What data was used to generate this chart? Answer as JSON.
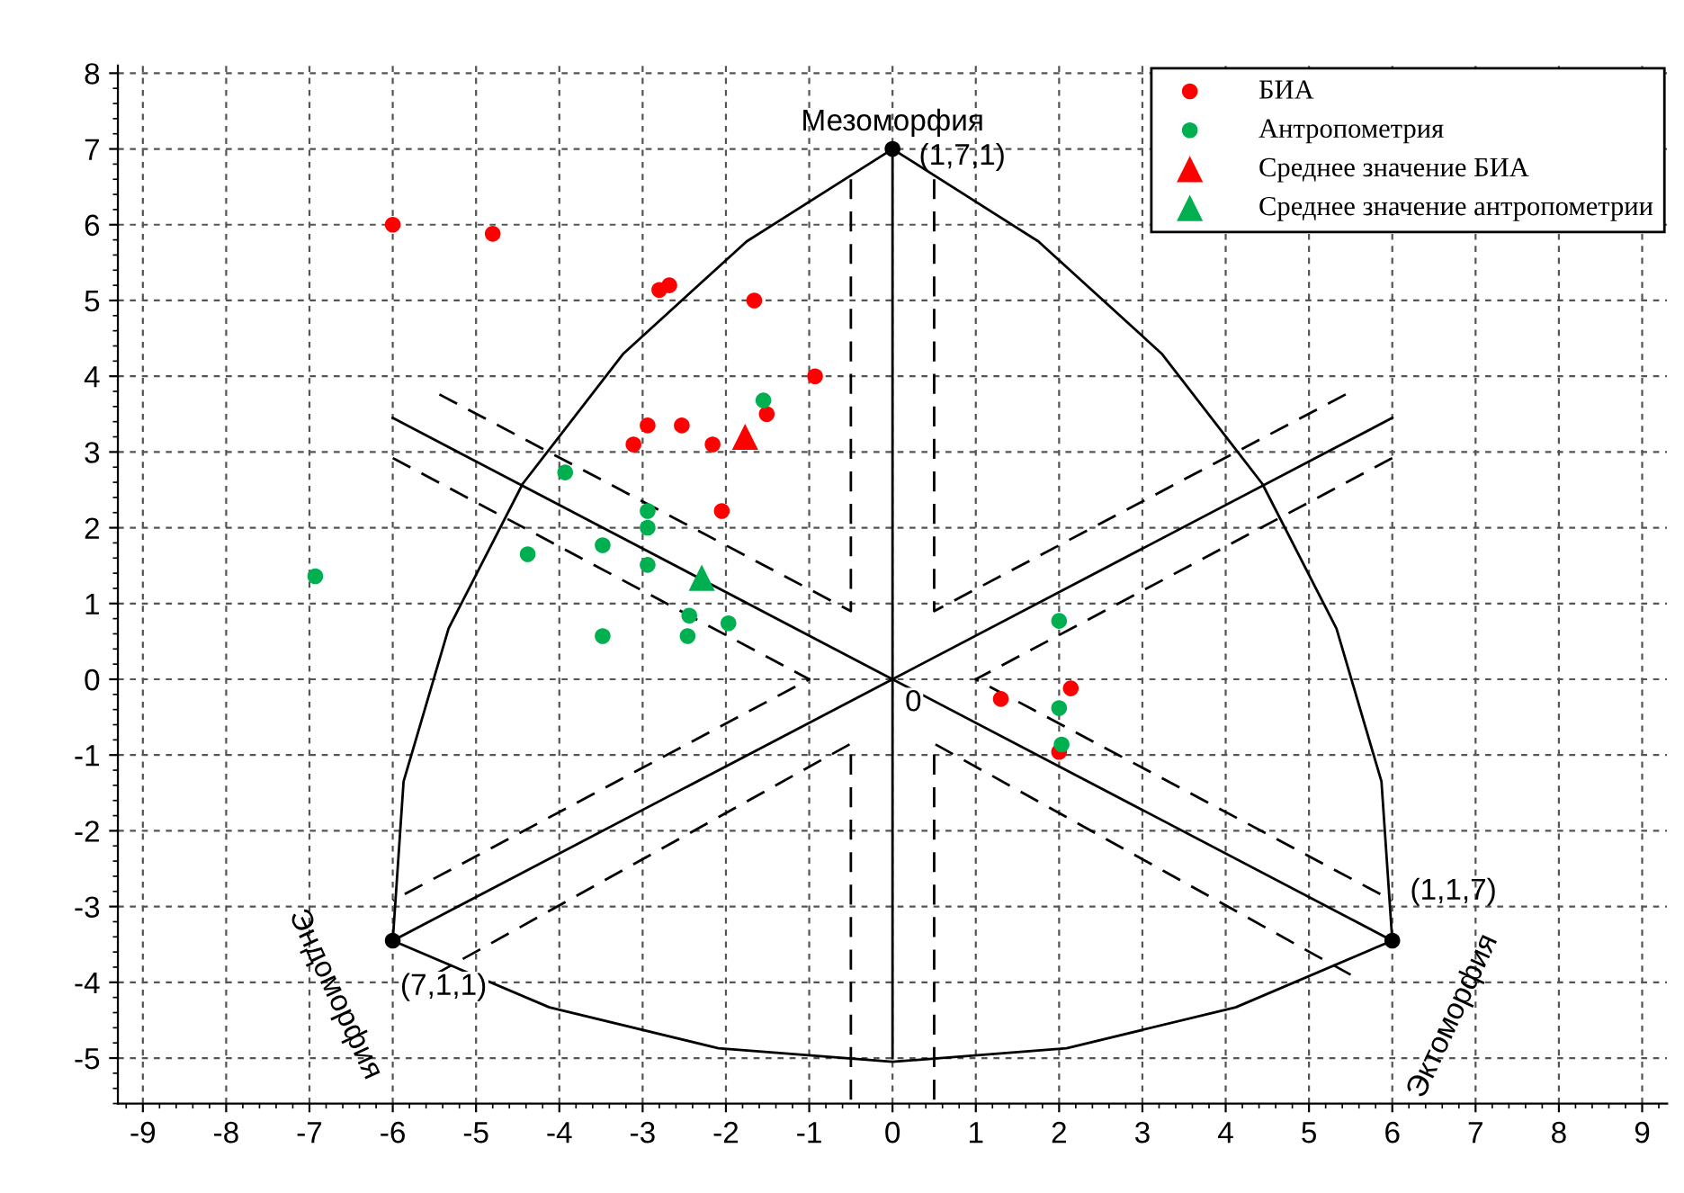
{
  "chart_data": {
    "type": "scatter",
    "xlim": [
      -9.3,
      9.3
    ],
    "ylim": [
      -5.6,
      8.1
    ],
    "xticks": [
      -9,
      -8,
      -7,
      -6,
      -5,
      -4,
      -3,
      -2,
      -1,
      0,
      1,
      2,
      3,
      4,
      5,
      6,
      7,
      8,
      9
    ],
    "yticks": [
      -5,
      -4,
      -3,
      -2,
      -1,
      0,
      1,
      2,
      3,
      4,
      5,
      6,
      7,
      8
    ],
    "grid": true,
    "legend": "top right",
    "series": [
      {
        "type": "line",
        "color": "#000000",
        "line_style": "solid",
        "x": [
          0,
          -1.75,
          -3.23,
          -4.44,
          -5.33,
          -5.87,
          -6
        ],
        "values": [
          7,
          5.78,
          4.3,
          2.58,
          0.67,
          -1.35,
          -3.45
        ]
      },
      {
        "type": "line",
        "color": "#000000",
        "line_style": "solid",
        "x": [
          0,
          1.75,
          3.23,
          4.44,
          5.33,
          5.87,
          6
        ],
        "values": [
          7,
          5.78,
          4.3,
          2.58,
          0.67,
          -1.35,
          -3.45
        ]
      },
      {
        "type": "line",
        "color": "#000000",
        "line_style": "solid",
        "x": [
          -6,
          -4.12,
          -2.09,
          0,
          2.09,
          4.12,
          6
        ],
        "values": [
          -3.45,
          -4.33,
          -4.87,
          -5.05,
          -4.87,
          -4.33,
          -3.45
        ]
      },
      {
        "type": "line",
        "color": "#000000",
        "line_style": "solid",
        "x": [
          -6,
          0,
          6
        ],
        "values": [
          3.45,
          0,
          3.45
        ]
      },
      {
        "type": "line",
        "color": "#000000",
        "line_style": "dashed",
        "x": [
          -5.44,
          -0.5,
          -0.5
        ],
        "values": [
          3.76,
          0.9,
          6.6
        ]
      },
      {
        "type": "line",
        "color": "#000000",
        "line_style": "dashed",
        "x": [
          5.44,
          0.5,
          0.5
        ],
        "values": [
          3.76,
          0.9,
          6.6
        ]
      },
      {
        "type": "line",
        "color": "#000000",
        "line_style": "dashed",
        "x": [
          -6,
          -1,
          -6
        ],
        "values": [
          2.92,
          0,
          -2.92
        ]
      },
      {
        "type": "line",
        "color": "#000000",
        "line_style": "dashed",
        "x": [
          6,
          1,
          6
        ],
        "values": [
          2.92,
          0,
          -2.92
        ]
      },
      {
        "type": "line",
        "color": "#000000",
        "line_style": "dashed",
        "x": [
          -5.5,
          -0.5,
          -0.5
        ],
        "values": [
          -3.9,
          -0.85,
          -5.6
        ]
      },
      {
        "type": "line",
        "color": "#000000",
        "line_style": "dashed",
        "x": [
          5.5,
          0.5,
          0.5
        ],
        "values": [
          -3.9,
          -0.85,
          -5.6
        ]
      },
      {
        "type": "line",
        "color": "#000000",
        "line_style": "solid",
        "x": [
          0,
          0,
          0
        ],
        "values": [
          7,
          0,
          -5
        ]
      },
      {
        "type": "line",
        "color": "#000000",
        "line_style": "solid",
        "x": [
          -6,
          0,
          6
        ],
        "values": [
          -3.45,
          0,
          -3.45
        ]
      },
      {
        "color": "#000000",
        "marker": "circle",
        "x": [
          0,
          -6,
          6
        ],
        "values": [
          7,
          -3.45,
          -3.45
        ]
      },
      {
        "name": "БИА",
        "color": "#ff0000",
        "marker": "circle",
        "x": [
          -6,
          -4.8,
          -2.8,
          -2.68,
          -1.66,
          -0.93,
          -1.51,
          -2.53,
          -2.94,
          -3.11,
          -2.16,
          -2.05,
          1.3,
          2.14,
          2.0
        ],
        "values": [
          6.0,
          5.88,
          5.14,
          5.2,
          5.0,
          4.0,
          3.5,
          3.35,
          3.35,
          3.1,
          3.1,
          2.22,
          -0.26,
          -0.12,
          -0.96
        ]
      },
      {
        "name": "Антропометрия",
        "color": "#00b050",
        "marker": "circle",
        "x": [
          -1.55,
          -3.93,
          -2.94,
          -2.94,
          -3.48,
          -4.38,
          -2.94,
          -6.93,
          -2.44,
          -1.97,
          -2.46,
          -3.48,
          2.0,
          2.0,
          2.03
        ],
        "values": [
          3.68,
          2.73,
          2.22,
          2.0,
          1.77,
          1.65,
          1.51,
          1.36,
          0.84,
          0.74,
          0.57,
          0.57,
          0.77,
          -0.38,
          -0.86
        ]
      },
      {
        "name": "Среднее значение БИА",
        "color": "#ff0000",
        "marker": "triangle",
        "x": [
          -1.77
        ],
        "values": [
          3.2
        ]
      },
      {
        "name": "Среднее значение антропометрии",
        "color": "#00b050",
        "marker": "triangle",
        "x": [
          -2.29
        ],
        "values": [
          1.34
        ]
      }
    ],
    "annotations": [
      "Мезоморфия",
      "(1,7,1)",
      "Эндоморфия",
      {
        "text": "(7,1,1)",
        "x": -6,
        "y": -3.45
      },
      "Эктоморфия",
      "(1,1,7)",
      {
        "text": "0",
        "x": 0,
        "y": 0
      }
    ]
  }
}
